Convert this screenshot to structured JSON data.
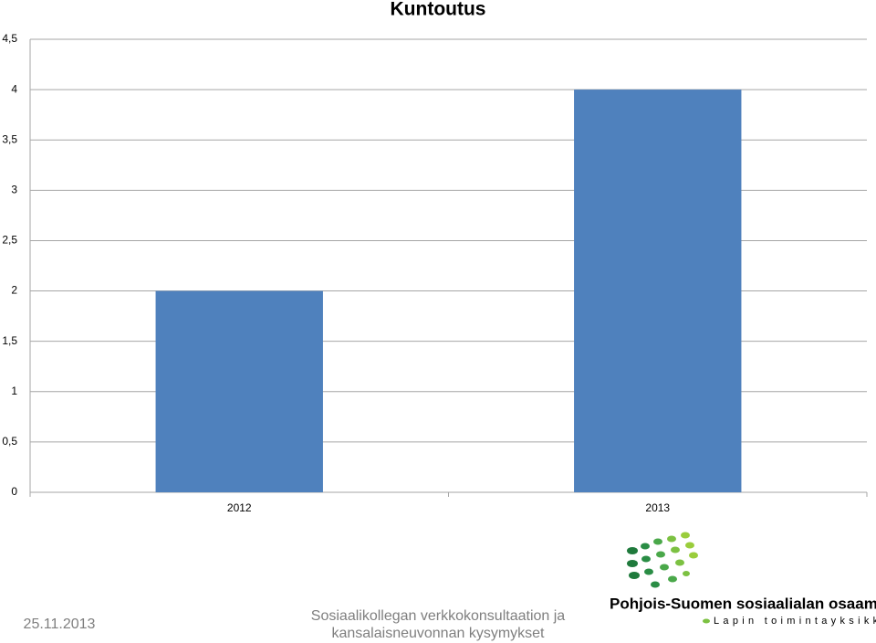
{
  "chart_data": {
    "type": "bar",
    "title": "Kuntoutus",
    "categories": [
      "2012",
      "2013"
    ],
    "values": [
      2,
      4
    ],
    "color": "#4f81bd",
    "ylim": [
      0,
      4.5
    ],
    "yticks": [
      0,
      {
        "value": 0.5,
        "label": "0,5"
      },
      1,
      {
        "value": 1.5,
        "label": "1,5"
      },
      2,
      {
        "value": 2.5,
        "label": "2,5"
      },
      3,
      {
        "value": 3.5,
        "label": "3,5"
      },
      4,
      {
        "value": 4.5,
        "label": "4,5"
      }
    ],
    "grid": true
  },
  "footer": {
    "date": "25.11.2013",
    "caption": [
      "Sosiaalikollegan verkkokonsultaation ja",
      "kansalaisneuvonnan kysymykset"
    ],
    "logo_title": "Pohjois-Suomen sosiaalialan osaamiskeskus",
    "logo_subtitle": "Lapin toimintayksikkö"
  }
}
